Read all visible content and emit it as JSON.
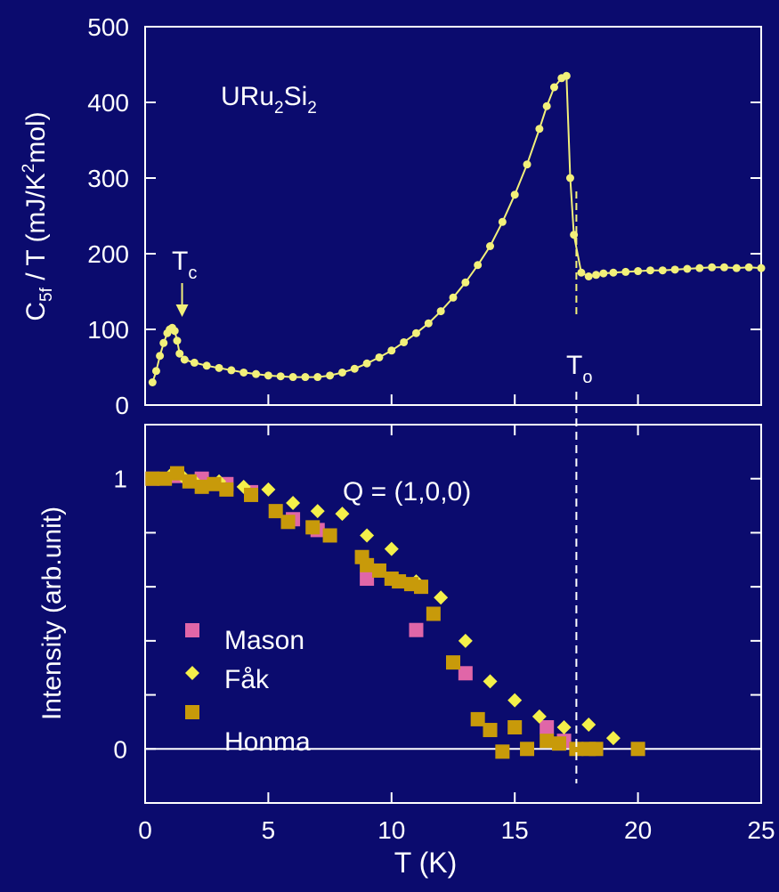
{
  "colors": {
    "background": "#0b0b6e",
    "axes": "#ffffff",
    "heat_capacity": "#f2f07a",
    "mason": "#e066a8",
    "fak": "#f4f04a",
    "honma": "#c89a0a"
  },
  "chart_data": [
    {
      "type": "line",
      "panel": "top",
      "xlim": [
        0,
        25
      ],
      "ylim": [
        0,
        500
      ],
      "yticks": [
        "0",
        "100",
        "200",
        "300",
        "400",
        "500"
      ],
      "ylabel": {
        "main": "C",
        "sub": "5f",
        "mid": " / T (mJ/K",
        "sup": "2",
        "tail": "mol)"
      },
      "annotation": {
        "main": "URu",
        "sub1": "2",
        "mid": "Si",
        "sub2": "2"
      },
      "tc_label": {
        "main": "T",
        "sub": "c"
      },
      "to_label": {
        "main": "T",
        "sub": "o"
      },
      "transition_marker_x": 17.5,
      "tc_arrow_x": 1.5,
      "series": [
        {
          "x": [
            0.3,
            0.45,
            0.6,
            0.75,
            0.9,
            1.0,
            1.1,
            1.2,
            1.3,
            1.4,
            1.6,
            2.0,
            2.5,
            3.0,
            3.5,
            4.0,
            4.5,
            5.0,
            5.5,
            6.0,
            6.5,
            7.0,
            7.5,
            8.0,
            8.5,
            9.0,
            9.5,
            10.0,
            10.5,
            11.0,
            11.5,
            12.0,
            12.5,
            13.0,
            13.5,
            14.0,
            14.5,
            15.0,
            15.5,
            16.0,
            16.3,
            16.6,
            16.9,
            17.1,
            17.25,
            17.4,
            17.7,
            18.0,
            18.3,
            18.6,
            19.0,
            19.5,
            20.0,
            20.5,
            21.0,
            21.5,
            22.0,
            22.5,
            23.0,
            23.5,
            24.0,
            24.5,
            25.0
          ],
          "y": [
            30,
            45,
            65,
            82,
            95,
            100,
            102,
            98,
            85,
            68,
            60,
            56,
            52,
            49,
            46,
            43,
            41,
            39,
            38,
            37,
            37,
            37,
            39,
            43,
            48,
            55,
            63,
            72,
            83,
            95,
            108,
            124,
            142,
            162,
            185,
            210,
            242,
            278,
            318,
            365,
            395,
            420,
            432,
            435,
            300,
            225,
            175,
            170,
            172,
            174,
            175,
            176,
            177,
            178,
            178,
            179,
            180,
            181,
            182,
            182,
            181,
            182,
            181
          ]
        }
      ]
    },
    {
      "type": "scatter",
      "panel": "bottom",
      "xlim": [
        0,
        25
      ],
      "ylim": [
        -0.2,
        1.2
      ],
      "xticks": [
        "0",
        "5",
        "10",
        "15",
        "20",
        "25"
      ],
      "yticks": [
        "0",
        "1"
      ],
      "xlabel": "T (K)",
      "ylabel": "Intensity (arb.unit)",
      "annotation": "Q = (1,0,0)",
      "series": [
        {
          "name": "Mason",
          "marker": "square",
          "x": [
            0.3,
            1.3,
            2.3,
            3.3,
            4.3,
            6.0,
            7.0,
            9.0,
            11.0,
            13.0,
            16.3,
            17.0
          ],
          "y": [
            1.0,
            1.01,
            1.0,
            0.98,
            0.95,
            0.85,
            0.81,
            0.63,
            0.44,
            0.28,
            0.08,
            0.03
          ]
        },
        {
          "name": "Fåk",
          "marker": "diamond",
          "x": [
            0.5,
            1.0,
            1.5,
            2.0,
            3.0,
            4.0,
            5.0,
            6.0,
            7.0,
            8.0,
            9.0,
            10.0,
            11.0,
            12.0,
            13.0,
            14.0,
            15.0,
            16.0,
            17.0,
            18.0,
            19.0
          ],
          "y": [
            1.0,
            1.01,
            1.01,
            0.99,
            0.99,
            0.97,
            0.96,
            0.91,
            0.88,
            0.87,
            0.79,
            0.74,
            0.62,
            0.56,
            0.4,
            0.25,
            0.18,
            0.12,
            0.08,
            0.09,
            0.04
          ]
        },
        {
          "name": "Honma",
          "marker": "square",
          "x": [
            0.3,
            0.8,
            1.3,
            1.8,
            2.3,
            2.8,
            3.3,
            4.3,
            5.3,
            5.8,
            6.8,
            7.5,
            8.8,
            9.0,
            9.5,
            10.0,
            10.3,
            10.8,
            11.2,
            11.7,
            12.5,
            13.5,
            14.0,
            14.5,
            15.0,
            15.5,
            16.3,
            16.8,
            17.5,
            18.0,
            18.3,
            20.0
          ],
          "y": [
            1.0,
            1.0,
            1.02,
            0.99,
            0.97,
            0.98,
            0.96,
            0.94,
            0.88,
            0.84,
            0.82,
            0.79,
            0.71,
            0.68,
            0.66,
            0.63,
            0.62,
            0.61,
            0.6,
            0.5,
            0.32,
            0.11,
            0.07,
            -0.01,
            0.08,
            0.0,
            0.03,
            0.02,
            0.0,
            0.0,
            0.0,
            0.0
          ]
        }
      ]
    }
  ]
}
